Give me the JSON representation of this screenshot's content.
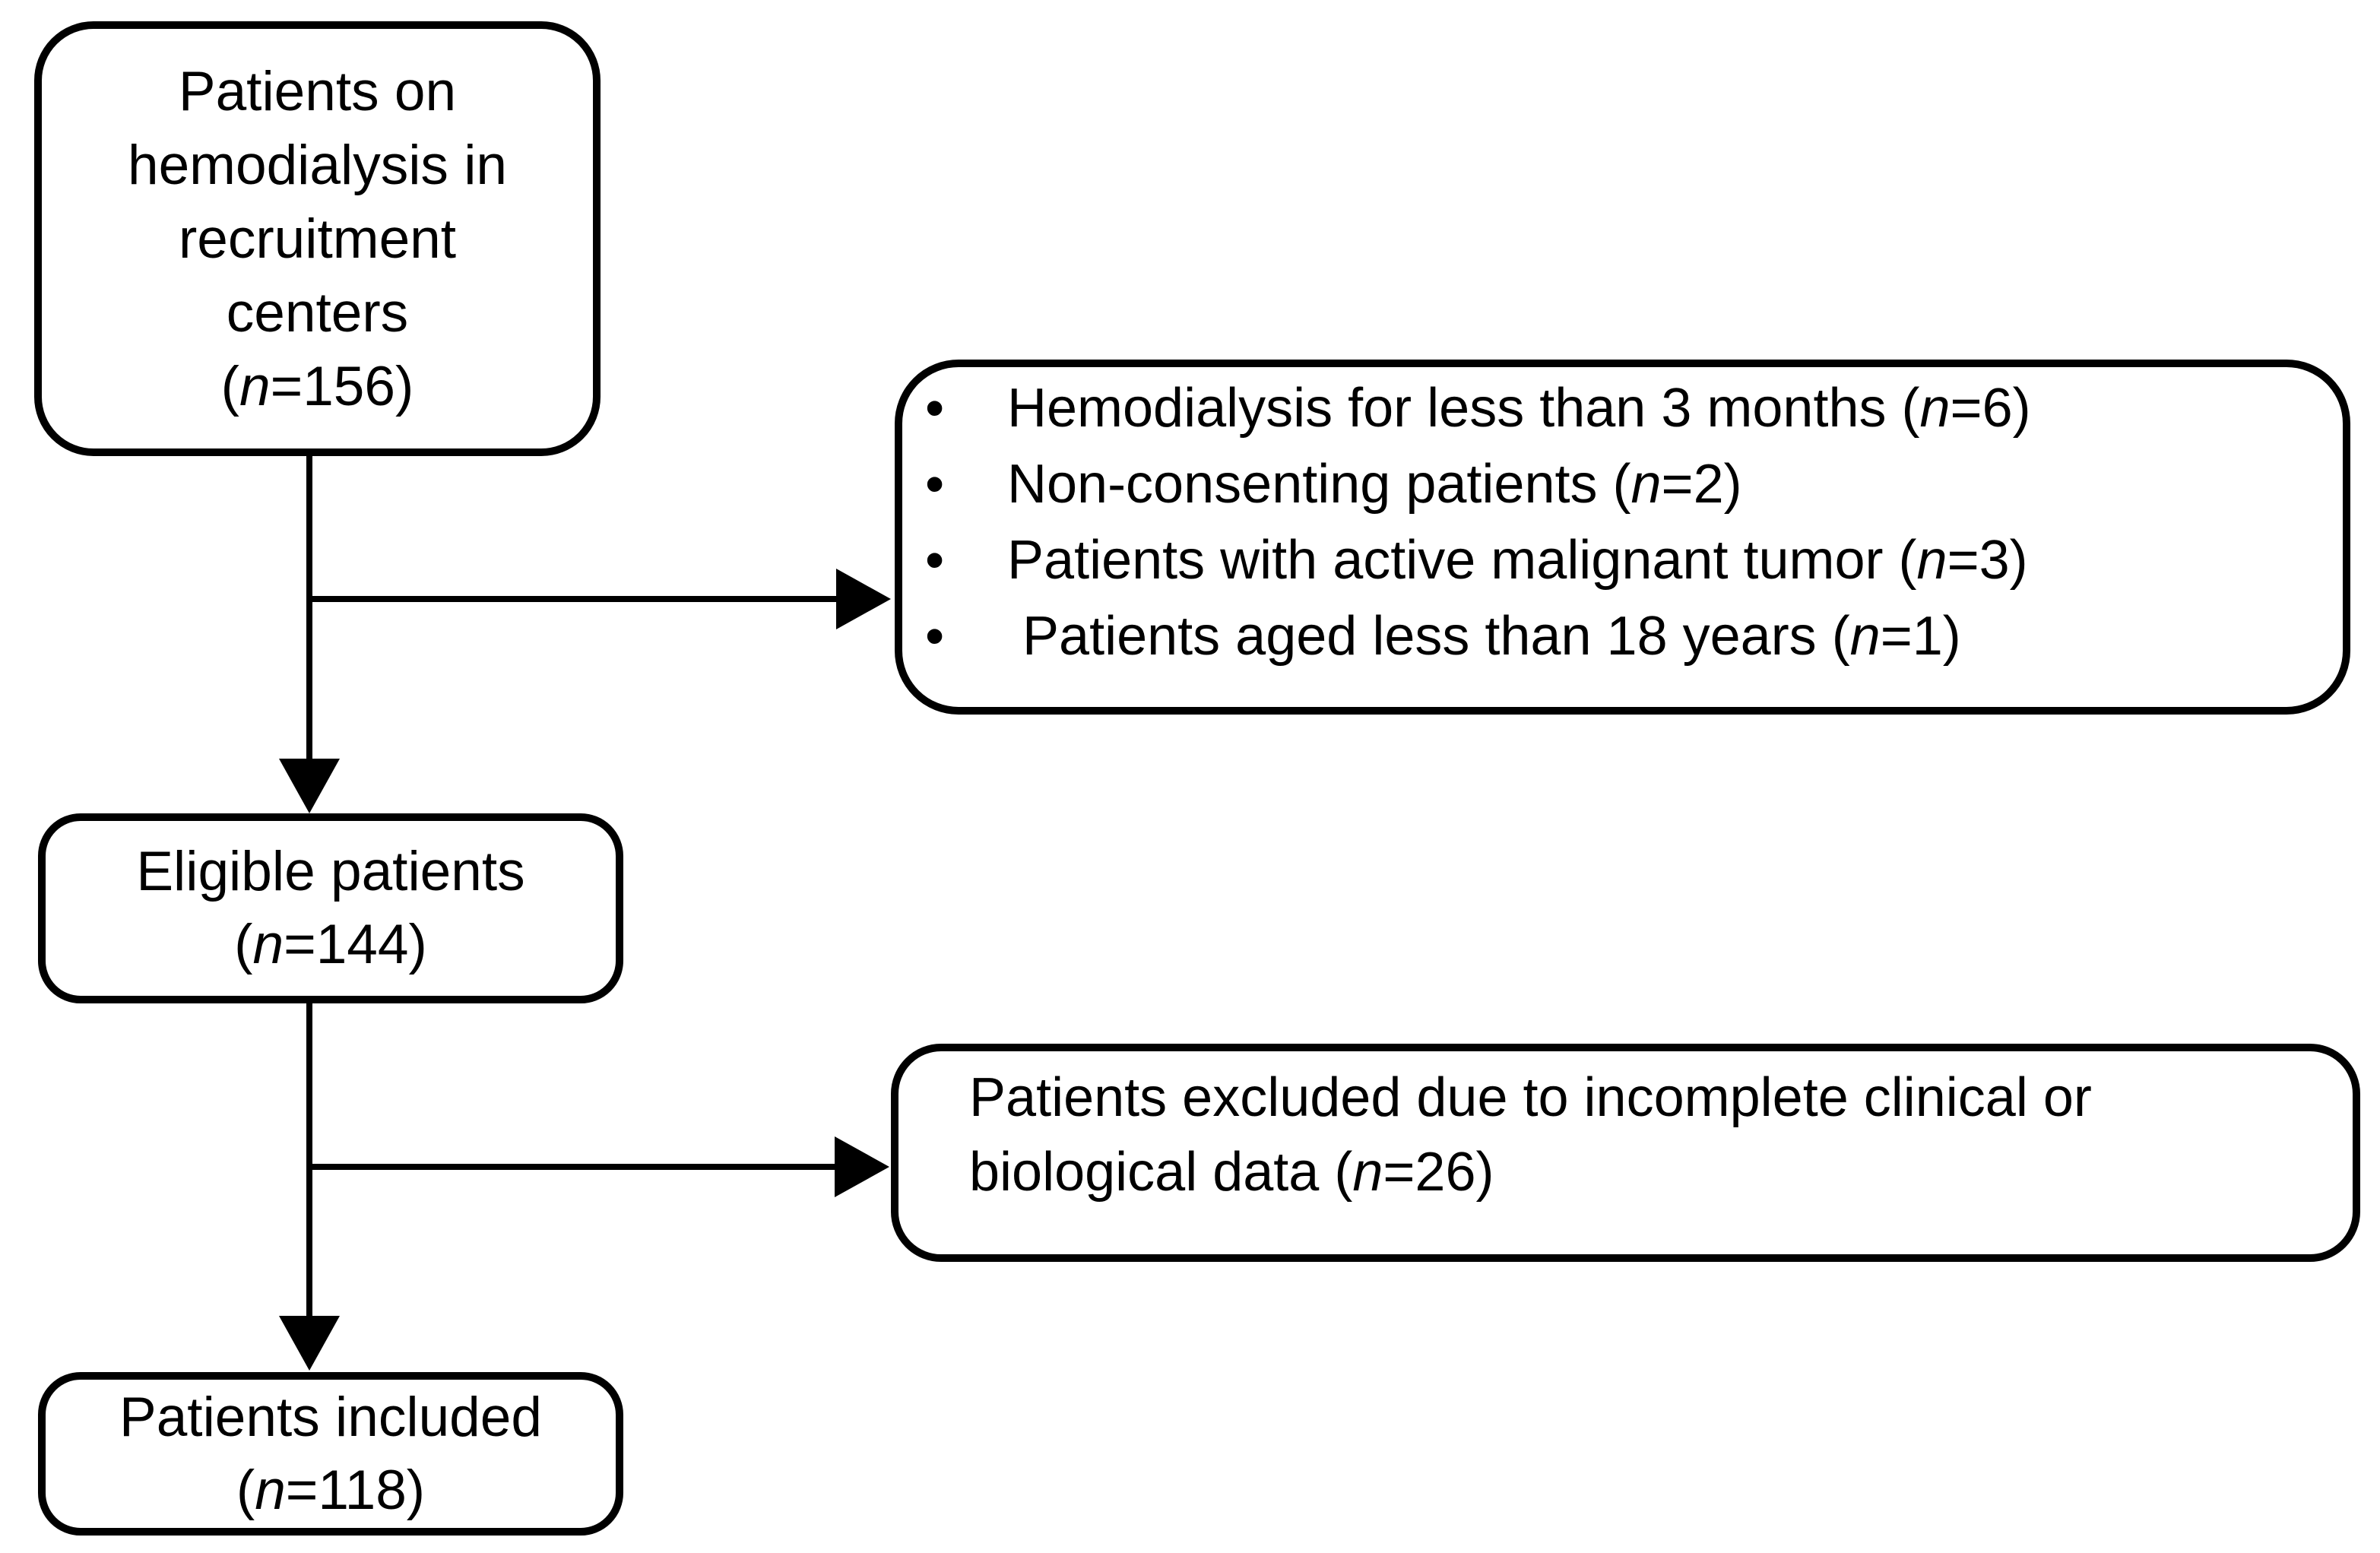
{
  "diagram": {
    "background_color": "#ffffff",
    "line_color": "#000000",
    "bullet_glyph": "•",
    "boxes": {
      "source": {
        "lines": [
          "Patients on",
          "hemodialysis in",
          "recruitment",
          "centers"
        ],
        "count": {
          "open": "(",
          "n": "n",
          "rest": "=156)"
        }
      },
      "eligible": {
        "label": "Eligible patients",
        "count": {
          "open": "(",
          "n": "n",
          "rest": "=144)"
        }
      },
      "included": {
        "label": "Patients included",
        "count": {
          "open": "(",
          "n": "n",
          "rest": "=118)"
        }
      },
      "exclusions_primary": {
        "items": [
          {
            "text": "Hemodialysis for less than 3 months ",
            "count": {
              "open": "(",
              "n": "n",
              "rest": "=6)"
            }
          },
          {
            "text": "Non-consenting patients ",
            "count": {
              "open": "(",
              "n": "n",
              "rest": "=2)"
            }
          },
          {
            "text": "Patients with active malignant tumor ",
            "count": {
              "open": "(",
              "n": "n",
              "rest": "=3)"
            }
          },
          {
            "text": " Patients aged less than 18 years ",
            "count": {
              "open": "(",
              "n": "n",
              "rest": "=1)"
            }
          }
        ]
      },
      "exclusions_secondary": {
        "line1": "Patients excluded due to incomplete clinical or",
        "line2": "biological data ",
        "count": {
          "open": "(",
          "n": "n",
          "rest": "=26)"
        }
      }
    }
  }
}
